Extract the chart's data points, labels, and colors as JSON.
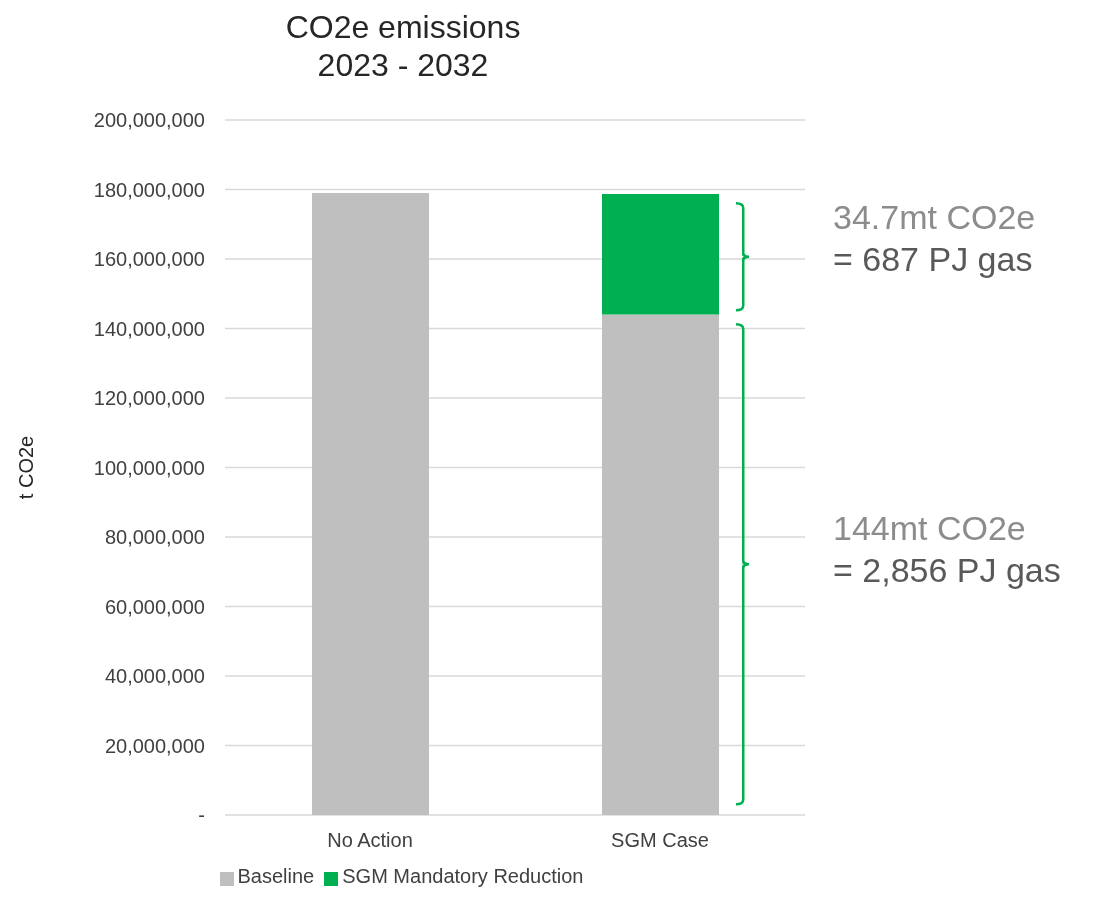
{
  "chart_data": {
    "type": "bar",
    "title": "CO2e emissions\n2023 - 2032",
    "ylabel": "t CO2e",
    "categories": [
      "No Action",
      "SGM Case"
    ],
    "stacked": true,
    "series": [
      {
        "name": "Baseline",
        "color": "#bfbfbf",
        "values": [
          179000000,
          144000000
        ]
      },
      {
        "name": "SGM Mandatory Reduction",
        "color": "#00b050",
        "values": [
          null,
          34700000
        ]
      }
    ],
    "ylim": [
      0,
      200000000
    ],
    "yticks": [
      {
        "value": 0,
        "label": "-"
      },
      {
        "value": 20000000,
        "label": "20,000,000"
      },
      {
        "value": 40000000,
        "label": "40,000,000"
      },
      {
        "value": 60000000,
        "label": "60,000,000"
      },
      {
        "value": 80000000,
        "label": "80,000,000"
      },
      {
        "value": 100000000,
        "label": "100,000,000"
      },
      {
        "value": 120000000,
        "label": "120,000,000"
      },
      {
        "value": 140000000,
        "label": "140,000,000"
      },
      {
        "value": 160000000,
        "label": "160,000,000"
      },
      {
        "value": 180000000,
        "label": "180,000,000"
      },
      {
        "value": 200000000,
        "label": "200,000,000"
      }
    ],
    "grid": "y",
    "legend": "bottom",
    "annotations": [
      "34.7mt CO2e\n= 687 PJ gas",
      "144mt CO2e\n= 2,856 PJ gas"
    ]
  }
}
